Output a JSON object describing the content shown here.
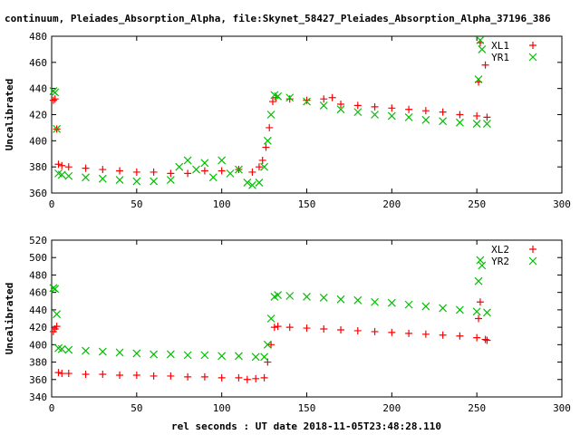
{
  "title": "continuum, Pleiades_Absorption_Alpha, file:Skynet_58427_Pleiades_Absorption_Alpha_37196_386",
  "xlabel": "rel seconds : UT date 2018-11-05T23:48:28.110",
  "colors": {
    "red": "#ff0000",
    "green": "#00c000"
  },
  "chart_data": [
    {
      "type": "scatter",
      "ylabel": "Uncalibrated",
      "xlim": [
        0,
        300
      ],
      "ylim": [
        360,
        480
      ],
      "xticks": [
        0,
        50,
        100,
        150,
        200,
        250,
        300
      ],
      "yticks": [
        360,
        380,
        400,
        420,
        440,
        460,
        480
      ],
      "legend_position": "top-right",
      "series": [
        {
          "name": "XL1",
          "marker": "plus",
          "color": "#ff0000",
          "x": [
            1,
            2,
            3,
            4,
            6,
            10,
            20,
            30,
            40,
            50,
            60,
            70,
            80,
            90,
            100,
            110,
            118,
            122,
            124,
            126,
            128,
            130,
            132,
            140,
            150,
            160,
            165,
            170,
            180,
            190,
            200,
            210,
            220,
            230,
            240,
            250,
            251,
            252,
            255,
            256
          ],
          "y": [
            431,
            432,
            409,
            382,
            381,
            380,
            379,
            378,
            377,
            376,
            376,
            375,
            375,
            377,
            377,
            378,
            376,
            380,
            385,
            395,
            410,
            430,
            433,
            432,
            431,
            432,
            433,
            428,
            427,
            426,
            425,
            424,
            423,
            422,
            420,
            419,
            445,
            475,
            458,
            418
          ]
        },
        {
          "name": "YR1",
          "marker": "cross",
          "color": "#00c000",
          "x": [
            1,
            2,
            3,
            4,
            6,
            10,
            20,
            30,
            40,
            50,
            60,
            70,
            75,
            80,
            85,
            90,
            95,
            100,
            105,
            110,
            115,
            118,
            122,
            125,
            127,
            129,
            131,
            133,
            140,
            150,
            160,
            170,
            180,
            190,
            200,
            210,
            220,
            230,
            240,
            250,
            251,
            252,
            253,
            256
          ],
          "y": [
            438,
            437,
            409,
            375,
            374,
            373,
            372,
            371,
            370,
            369,
            369,
            370,
            380,
            385,
            378,
            383,
            372,
            385,
            375,
            378,
            368,
            366,
            368,
            380,
            400,
            420,
            435,
            434,
            433,
            430,
            427,
            424,
            422,
            420,
            419,
            418,
            416,
            415,
            414,
            413,
            447,
            477,
            470,
            413
          ]
        }
      ]
    },
    {
      "type": "scatter",
      "ylabel": "Uncalibrated",
      "xlim": [
        0,
        300
      ],
      "ylim": [
        340,
        520
      ],
      "xticks": [
        0,
        50,
        100,
        150,
        200,
        250,
        300
      ],
      "yticks": [
        340,
        360,
        380,
        400,
        420,
        440,
        460,
        480,
        500,
        520
      ],
      "legend_position": "top-right",
      "series": [
        {
          "name": "XL2",
          "marker": "plus",
          "color": "#ff0000",
          "x": [
            1,
            2,
            3,
            4,
            6,
            10,
            20,
            30,
            40,
            50,
            60,
            70,
            80,
            90,
            100,
            110,
            115,
            120,
            125,
            127,
            129,
            131,
            133,
            140,
            150,
            160,
            170,
            180,
            190,
            200,
            210,
            220,
            230,
            240,
            250,
            251,
            252,
            255,
            256
          ],
          "y": [
            415,
            418,
            421,
            368,
            367,
            367,
            366,
            366,
            365,
            365,
            364,
            364,
            363,
            363,
            362,
            362,
            360,
            361,
            362,
            380,
            400,
            420,
            421,
            420,
            419,
            418,
            417,
            416,
            415,
            414,
            413,
            412,
            411,
            410,
            408,
            430,
            449,
            406,
            405
          ]
        },
        {
          "name": "YR2",
          "marker": "cross",
          "color": "#00c000",
          "x": [
            1,
            2,
            3,
            4,
            6,
            10,
            20,
            30,
            40,
            50,
            60,
            70,
            80,
            90,
            100,
            110,
            120,
            125,
            127,
            129,
            131,
            133,
            140,
            150,
            160,
            170,
            180,
            190,
            200,
            210,
            220,
            230,
            240,
            250,
            251,
            252,
            253,
            256
          ],
          "y": [
            465,
            464,
            435,
            396,
            395,
            394,
            393,
            392,
            391,
            390,
            389,
            389,
            388,
            388,
            387,
            387,
            386,
            386,
            400,
            430,
            455,
            457,
            456,
            455,
            454,
            452,
            451,
            449,
            448,
            446,
            444,
            442,
            440,
            438,
            473,
            497,
            491,
            437
          ]
        }
      ]
    }
  ]
}
